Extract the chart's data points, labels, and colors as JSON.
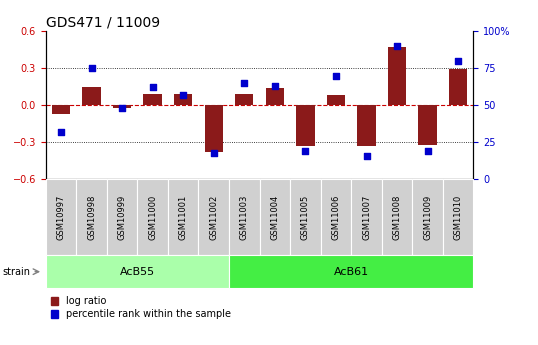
{
  "title": "GDS471 / 11009",
  "samples": [
    "GSM10997",
    "GSM10998",
    "GSM10999",
    "GSM11000",
    "GSM11001",
    "GSM11002",
    "GSM11003",
    "GSM11004",
    "GSM11005",
    "GSM11006",
    "GSM11007",
    "GSM11008",
    "GSM11009",
    "GSM11010"
  ],
  "log_ratio": [
    -0.07,
    0.15,
    -0.02,
    0.09,
    0.09,
    -0.38,
    0.09,
    0.14,
    -0.33,
    0.08,
    -0.33,
    0.47,
    -0.32,
    0.29
  ],
  "percentile": [
    32,
    75,
    48,
    62,
    57,
    18,
    65,
    63,
    19,
    70,
    16,
    90,
    19,
    80
  ],
  "strains": [
    {
      "label": "AcB55",
      "start": 0,
      "end": 5
    },
    {
      "label": "AcB61",
      "start": 6,
      "end": 13
    }
  ],
  "bar_color": "#8B1A1A",
  "dot_color": "#0000CC",
  "left_axis_color": "#CC0000",
  "right_axis_color": "#0000CC",
  "ylim_left": [
    -0.6,
    0.6
  ],
  "ylim_right": [
    0,
    100
  ],
  "yticks_left": [
    -0.6,
    -0.3,
    0.0,
    0.3,
    0.6
  ],
  "yticks_right": [
    0,
    25,
    50,
    75,
    100
  ],
  "ytick_labels_right": [
    "0",
    "25",
    "50",
    "75",
    "100%"
  ],
  "hline_zero_color": "#CC0000",
  "hline_dotted_color": "#000000",
  "strain_label_text": "strain",
  "legend_log_ratio": "log ratio",
  "legend_percentile": "percentile rank within the sample",
  "acb55_color": "#AAFFAA",
  "acb61_color": "#44EE44",
  "strain_bg_color": "#D0D0D0",
  "title_fontsize": 10,
  "tick_fontsize": 7,
  "label_fontsize": 6
}
